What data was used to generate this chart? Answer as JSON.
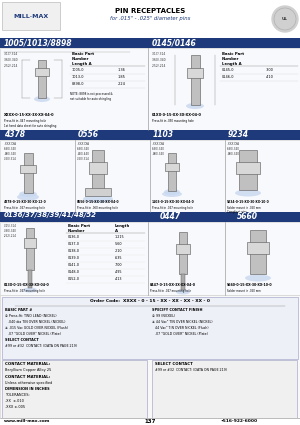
{
  "title_line1": "PIN RECEPTACLES",
  "title_line2": "for .015\" - .025\" diameter pins",
  "bg_color": "#ffffff",
  "header_blue": "#1e3a7a",
  "header_text_color": "#ffffff",
  "page_number": "137",
  "phone": "•516-922-6000",
  "website": "www.mill-max.com",
  "light_gray": "#f0f0f0",
  "border_color": "#999999",
  "section_bg": "#f8f9fc",
  "dim_text_color": "#333333",
  "blue_oval": "#c8d8f0"
}
